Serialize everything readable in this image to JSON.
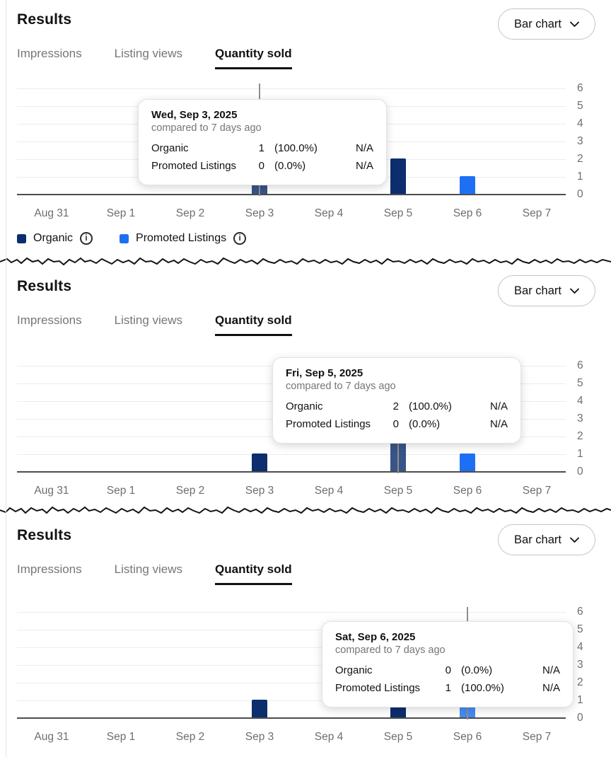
{
  "colors": {
    "organic": "#0c2e6e",
    "promoted": "#1e70f2",
    "grid": "#ececec",
    "axis": "#4d4d4d",
    "hover_line": "#8f8f8f",
    "tick_text": "#6e6e6e"
  },
  "panels": [
    {
      "title": "Results",
      "chart_selector": {
        "label": "Bar chart"
      },
      "tabs": [
        {
          "label": "Impressions",
          "active": false
        },
        {
          "label": "Listing views",
          "active": false
        },
        {
          "label": "Quantity sold",
          "active": true
        }
      ],
      "tooltip": {
        "date": "Wed, Sep 3, 2025",
        "subtitle": "compared to 7 days ago",
        "rows": [
          {
            "label": "Organic",
            "value": "1",
            "pct": "(100.0%)",
            "note": "N/A"
          },
          {
            "label": "Promoted Listings",
            "value": "0",
            "pct": "(0.0%)",
            "note": "N/A"
          }
        ]
      },
      "legend": [
        {
          "label": "Organic",
          "color_key": "organic"
        },
        {
          "label": "Promoted Listings",
          "color_key": "promoted"
        }
      ],
      "chart_data": {
        "type": "bar",
        "categories": [
          "Aug 31",
          "Sep 1",
          "Sep 2",
          "Sep 3",
          "Sep 4",
          "Sep 5",
          "Sep 6",
          "Sep 7"
        ],
        "series": [
          {
            "name": "Organic",
            "color_key": "organic",
            "values": [
              0,
              0,
              0,
              1,
              0,
              2,
              0,
              0
            ]
          },
          {
            "name": "Promoted Listings",
            "color_key": "promoted",
            "values": [
              0,
              0,
              0,
              0,
              0,
              0,
              1,
              0
            ]
          }
        ],
        "ylim": [
          0,
          6
        ],
        "yticks": [
          0,
          1,
          2,
          3,
          4,
          5,
          6
        ],
        "hover_index": 3,
        "legend_position": "bottom-left",
        "grid": true
      }
    },
    {
      "title": "Results",
      "chart_selector": {
        "label": "Bar chart"
      },
      "tabs": [
        {
          "label": "Impressions",
          "active": false
        },
        {
          "label": "Listing views",
          "active": false
        },
        {
          "label": "Quantity sold",
          "active": true
        }
      ],
      "tooltip": {
        "date": "Fri, Sep 5, 2025",
        "subtitle": "compared to 7 days ago",
        "rows": [
          {
            "label": "Organic",
            "value": "2",
            "pct": "(100.0%)",
            "note": "N/A"
          },
          {
            "label": "Promoted Listings",
            "value": "0",
            "pct": "(0.0%)",
            "note": "N/A"
          }
        ]
      },
      "chart_data": {
        "type": "bar",
        "categories": [
          "Aug 31",
          "Sep 1",
          "Sep 2",
          "Sep 3",
          "Sep 4",
          "Sep 5",
          "Sep 6",
          "Sep 7"
        ],
        "series": [
          {
            "name": "Organic",
            "color_key": "organic",
            "values": [
              0,
              0,
              0,
              1,
              0,
              2,
              0,
              0
            ]
          },
          {
            "name": "Promoted Listings",
            "color_key": "promoted",
            "values": [
              0,
              0,
              0,
              0,
              0,
              0,
              1,
              0
            ]
          }
        ],
        "ylim": [
          0,
          6
        ],
        "yticks": [
          0,
          1,
          2,
          3,
          4,
          5,
          6
        ],
        "hover_index": 5,
        "grid": true
      }
    },
    {
      "title": "Results",
      "chart_selector": {
        "label": "Bar chart"
      },
      "tabs": [
        {
          "label": "Impressions",
          "active": false
        },
        {
          "label": "Listing views",
          "active": false
        },
        {
          "label": "Quantity sold",
          "active": true
        }
      ],
      "tooltip": {
        "date": "Sat, Sep 6, 2025",
        "subtitle": "compared to 7 days ago",
        "rows": [
          {
            "label": "Organic",
            "value": "0",
            "pct": "(0.0%)",
            "note": "N/A"
          },
          {
            "label": "Promoted Listings",
            "value": "1",
            "pct": "(100.0%)",
            "note": "N/A"
          }
        ]
      },
      "chart_data": {
        "type": "bar",
        "categories": [
          "Aug 31",
          "Sep 1",
          "Sep 2",
          "Sep 3",
          "Sep 4",
          "Sep 5",
          "Sep 6",
          "Sep 7"
        ],
        "series": [
          {
            "name": "Organic",
            "color_key": "organic",
            "values": [
              0,
              0,
              0,
              1,
              0,
              2,
              0,
              0
            ]
          },
          {
            "name": "Promoted Listings",
            "color_key": "promoted",
            "values": [
              0,
              0,
              0,
              0,
              0,
              0,
              1,
              0
            ]
          }
        ],
        "ylim": [
          0,
          6
        ],
        "yticks": [
          0,
          1,
          2,
          3,
          4,
          5,
          6
        ],
        "hover_index": 6,
        "grid": true
      }
    }
  ]
}
